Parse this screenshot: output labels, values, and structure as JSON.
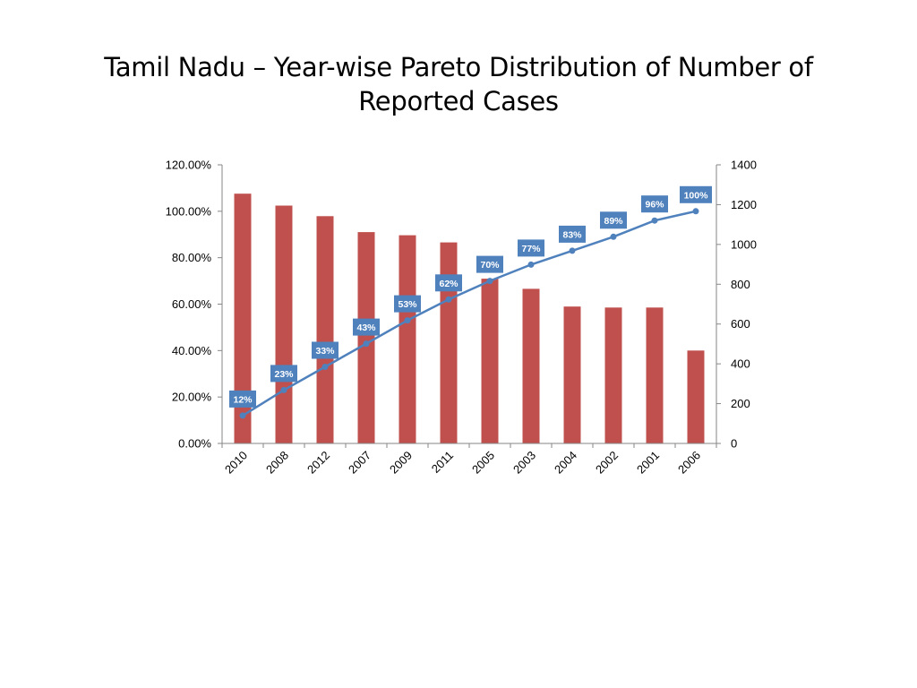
{
  "slide": {
    "title": "Tamil Nadu – Year-wise Pareto Distribution of Number of Reported Cases"
  },
  "chart_data": {
    "type": "bar",
    "title": "",
    "categories": [
      "2010",
      "2008",
      "2012",
      "2007",
      "2009",
      "2011",
      "2005",
      "2003",
      "2004",
      "2002",
      "2001",
      "2006"
    ],
    "series": [
      {
        "type": "bar",
        "axis": "right",
        "color": "#c0504d",
        "values": [
          1255,
          1195,
          1142,
          1062,
          1046,
          1010,
          828,
          777,
          688,
          683,
          683,
          467
        ]
      },
      {
        "type": "line",
        "axis": "left",
        "color": "#4f81bd",
        "values": [
          0.12,
          0.23,
          0.33,
          0.43,
          0.53,
          0.62,
          0.7,
          0.77,
          0.83,
          0.89,
          0.96,
          1.0
        ],
        "data_labels": [
          "12%",
          "23%",
          "33%",
          "43%",
          "53%",
          "62%",
          "70%",
          "77%",
          "83%",
          "89%",
          "96%",
          "100%"
        ]
      }
    ],
    "y_left": {
      "range": [
        0,
        1.2
      ],
      "ticks": [
        0,
        0.2,
        0.4,
        0.6,
        0.8,
        1.0,
        1.2
      ],
      "tick_labels": [
        "0.00%",
        "20.00%",
        "40.00%",
        "60.00%",
        "80.00%",
        "100.00%",
        "120.00%"
      ]
    },
    "y_right": {
      "range": [
        0,
        1400
      ],
      "ticks": [
        0,
        200,
        400,
        600,
        800,
        1000,
        1200,
        1400
      ],
      "tick_labels": [
        "0",
        "200",
        "400",
        "600",
        "800",
        "1000",
        "1200",
        "1400"
      ]
    },
    "grid": false,
    "legend": "none",
    "colors": {
      "bar": "#c0504d",
      "line": "#4f81bd",
      "label_box": "#4f81bd",
      "axis": "#868686"
    }
  }
}
